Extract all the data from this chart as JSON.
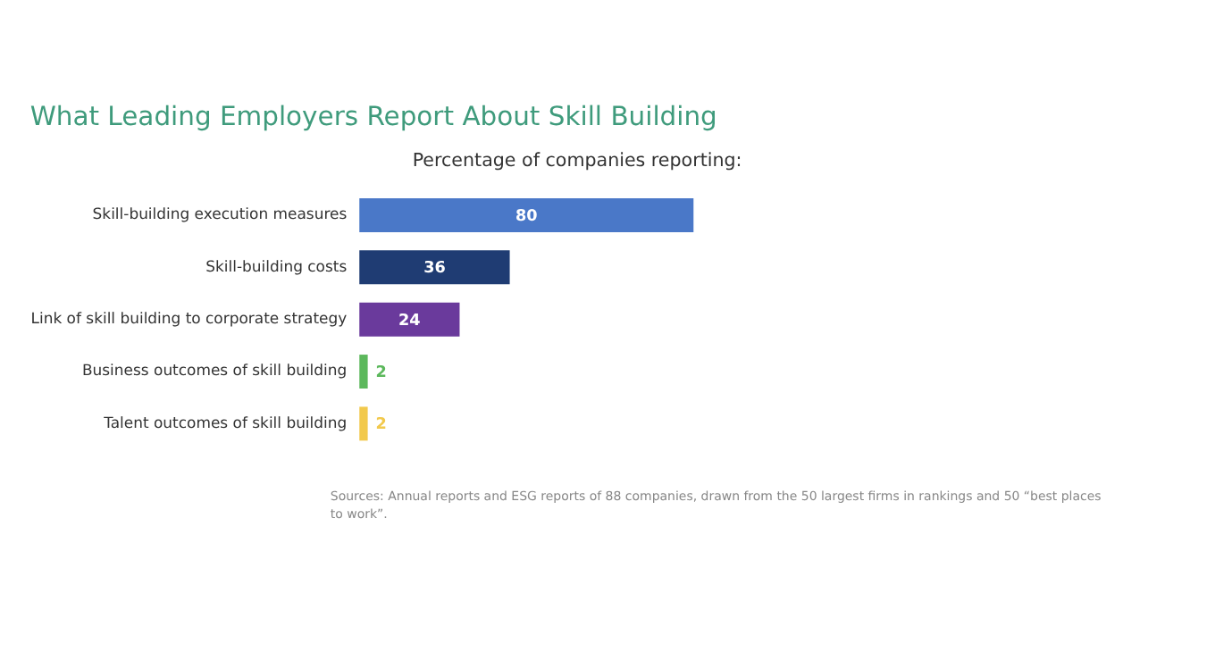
{
  "chart_data": {
    "type": "bar",
    "orientation": "horizontal",
    "title": "What Leading Employers Report About Skill Building",
    "xlabel": "Percentage of companies reporting:",
    "categories": [
      "Skill-building execution measures",
      "Skill-building costs",
      "Link of skill building to corporate strategy",
      "Business outcomes of skill building",
      "Talent outcomes of skill building"
    ],
    "values": [
      80,
      36,
      24,
      2,
      2
    ],
    "colors": [
      "#4a78c8",
      "#1f3c73",
      "#6a3a9c",
      "#5cb85c",
      "#f2c94c"
    ],
    "data_labels": true,
    "annotations": [
      "Sources: Annual reports and ESG reports of 88 companies, drawn from the 50 largest firms in rankings and 50 “best places to work”."
    ]
  }
}
